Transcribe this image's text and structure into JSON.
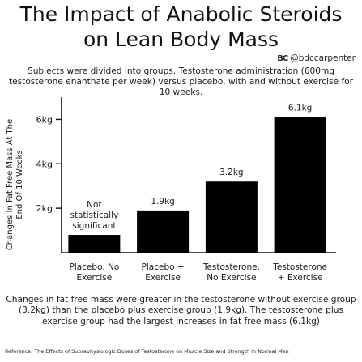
{
  "title_line1": "The Impact of Anabolic Steroids",
  "title_line2": "on Lean Body Mass",
  "handle_logo": "BC",
  "handle": "@bdccarpenter",
  "intro": "Subjects were divided into groups. Testosterone administration (600mg testosterone enanthate per week) versus placebo, with and without exercise for 10 weeks.",
  "conclusion": "Changes in fat free mass were greater in the testosterone without exercise group (3.2kg) than the placebo plus exercise group (1.9kg). The testosterone plus exercise group had the largest increases in fat free mass (6.1kg)",
  "reference": "Reference; The Effects of Supraphysiologic Doses of Testosterone on Muscle Size and Strength in Normal Men",
  "colors": {
    "bar": "#000000",
    "axis": "#111111",
    "text": "#1a1a1a"
  },
  "chart_data": {
    "type": "bar",
    "title": "The Impact of Anabolic Steroids on Lean Body Mass",
    "ylabel": "Changes In Fat Free Mass At The End Of 10 Weeks",
    "xlabel": "",
    "categories": [
      [
        "Placebo. No",
        "Exercise"
      ],
      [
        "Placebo +",
        "Exercise"
      ],
      [
        "Testosterone.",
        "No Exercise"
      ],
      [
        "Testosterone",
        "+ Exercise"
      ]
    ],
    "values": [
      0.8,
      1.9,
      3.2,
      6.1
    ],
    "data_labels": [
      [
        "Not",
        "statistically",
        "significant"
      ],
      [
        "1.9kg"
      ],
      [
        "3.2kg"
      ],
      [
        "6.1kg"
      ]
    ],
    "yticks": [
      2,
      4,
      6
    ],
    "ytick_labels": [
      "2kg",
      "4kg",
      "6kg"
    ],
    "ylim": [
      0,
      7
    ],
    "grid": false,
    "legend": "none"
  }
}
